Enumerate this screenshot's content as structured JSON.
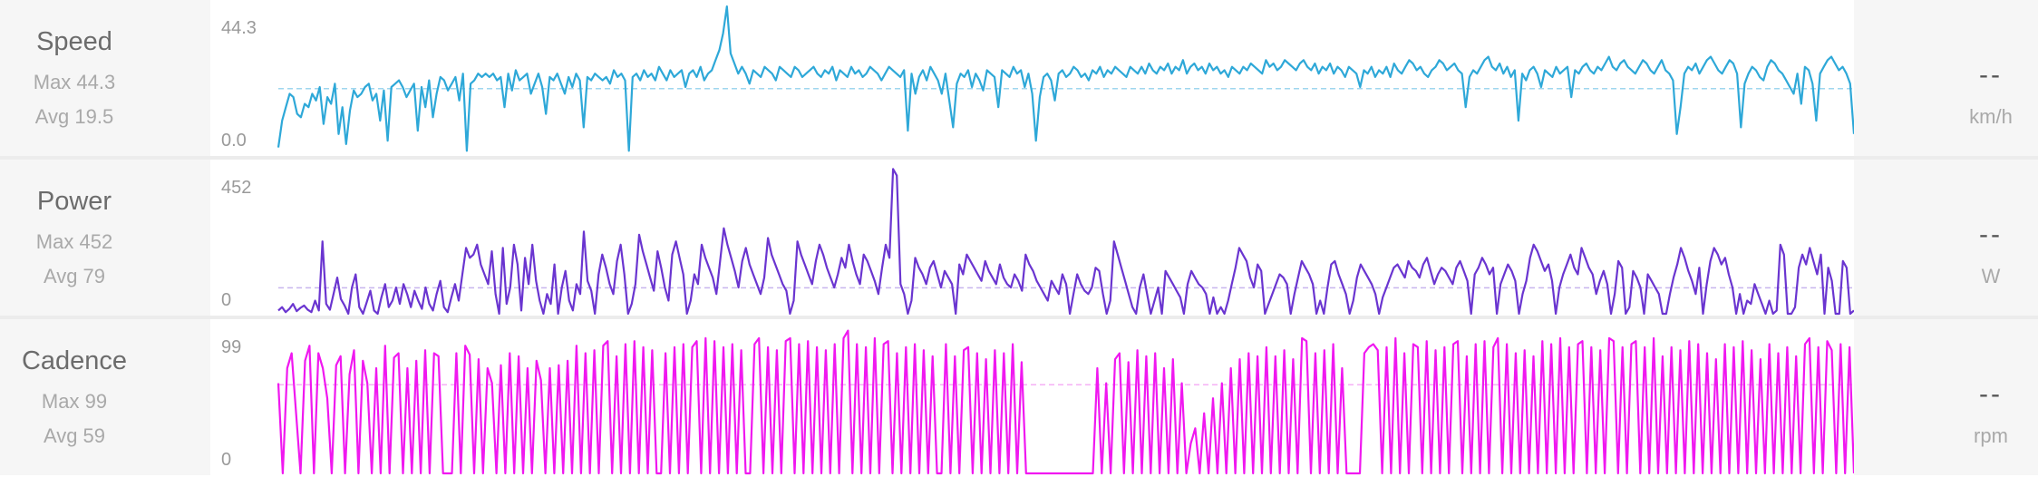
{
  "chart_data": [
    {
      "type": "line",
      "title": "Speed",
      "max_label": "Max 44.3",
      "avg_label": "Avg 19.5",
      "current": "--",
      "unit": "km/h",
      "ytick_top": "44.3",
      "ytick_bottom": "0.0",
      "ylim": [
        0,
        44.3
      ],
      "avg": 19.5,
      "color": "#2ea8d8",
      "avg_color": "#9fd6ee",
      "values": [
        2,
        10,
        14,
        18,
        17,
        12,
        11,
        15,
        14,
        18,
        16,
        20,
        9,
        17,
        15,
        21,
        6,
        14,
        3,
        13,
        19,
        17,
        18,
        20,
        21,
        16,
        18,
        10,
        19,
        4,
        20,
        21,
        22,
        20,
        17,
        19,
        21,
        7,
        20,
        14,
        22,
        11,
        18,
        23,
        22,
        19,
        21,
        23,
        16,
        24,
        1,
        21,
        22,
        24,
        23,
        24,
        23,
        24,
        22,
        23,
        14,
        24,
        19,
        25,
        22,
        23,
        24,
        18,
        21,
        24,
        20,
        12,
        23,
        22,
        24,
        21,
        18,
        23,
        20,
        24,
        22,
        8,
        23,
        22,
        24,
        23,
        22,
        23,
        21,
        25,
        23,
        24,
        22,
        1,
        23,
        24,
        22,
        25,
        23,
        24,
        22,
        26,
        24,
        22,
        25,
        23,
        24,
        25,
        20,
        24,
        25,
        23,
        26,
        22,
        24,
        25,
        28,
        31,
        36,
        44,
        30,
        27,
        24,
        26,
        24,
        21,
        25,
        24,
        23,
        26,
        25,
        24,
        22,
        26,
        25,
        24,
        23,
        26,
        25,
        23,
        24,
        25,
        26,
        24,
        23,
        25,
        24,
        26,
        22,
        25,
        24,
        23,
        26,
        24,
        25,
        23,
        24,
        26,
        25,
        24,
        22,
        24,
        26,
        25,
        24,
        23,
        25,
        7,
        24,
        18,
        23,
        25,
        22,
        26,
        24,
        22,
        18,
        24,
        16,
        8,
        21,
        24,
        23,
        25,
        20,
        24,
        22,
        19,
        25,
        24,
        23,
        14,
        25,
        24,
        23,
        26,
        24,
        25,
        20,
        24,
        18,
        4,
        17,
        23,
        24,
        22,
        16,
        24,
        25,
        23,
        24,
        26,
        25,
        23,
        24,
        22,
        25,
        24,
        26,
        23,
        25,
        24,
        26,
        25,
        24,
        23,
        26,
        25,
        24,
        26,
        24,
        27,
        25,
        24,
        26,
        25,
        27,
        24,
        26,
        25,
        28,
        24,
        26,
        27,
        25,
        26,
        24,
        27,
        25,
        26,
        24,
        25,
        23,
        26,
        25,
        24,
        26,
        25,
        27,
        26,
        25,
        24,
        28,
        26,
        27,
        25,
        26,
        28,
        27,
        26,
        25,
        27,
        28,
        26,
        25,
        27,
        24,
        26,
        25,
        27,
        24,
        26,
        25,
        23,
        26,
        25,
        24,
        20,
        25,
        24,
        26,
        23,
        25,
        24,
        26,
        23,
        27,
        25,
        24,
        26,
        28,
        27,
        25,
        26,
        24,
        23,
        25,
        26,
        28,
        27,
        25,
        26,
        27,
        25,
        24,
        14,
        23,
        25,
        24,
        26,
        28,
        29,
        26,
        25,
        27,
        24,
        26,
        23,
        25,
        10,
        24,
        22,
        25,
        26,
        24,
        20,
        25,
        24,
        23,
        26,
        24,
        25,
        26,
        17,
        25,
        24,
        26,
        27,
        25,
        24,
        26,
        25,
        27,
        29,
        26,
        25,
        27,
        28,
        26,
        25,
        24,
        26,
        28,
        27,
        25,
        24,
        26,
        28,
        25,
        24,
        22,
        6,
        14,
        24,
        26,
        25,
        27,
        24,
        26,
        28,
        29,
        27,
        25,
        24,
        26,
        28,
        27,
        24,
        8,
        21,
        24,
        26,
        25,
        23,
        22,
        26,
        28,
        27,
        25,
        24,
        22,
        20,
        18,
        24,
        15,
        26,
        25,
        21,
        10,
        24,
        26,
        28,
        29,
        27,
        25,
        26,
        24,
        21,
        6
      ]
    },
    {
      "type": "line",
      "title": "Power",
      "max_label": "Max 452",
      "avg_label": "Avg 79",
      "current": "--",
      "unit": "W",
      "ytick_top": "452",
      "ytick_bottom": "0",
      "ylim": [
        0,
        452
      ],
      "avg": 79,
      "color": "#6a35d0",
      "avg_color": "#c7b5ee",
      "values": [
        10,
        20,
        5,
        15,
        30,
        8,
        18,
        25,
        12,
        5,
        40,
        10,
        220,
        30,
        12,
        60,
        110,
        45,
        25,
        0,
        80,
        120,
        20,
        0,
        35,
        70,
        10,
        0,
        50,
        90,
        20,
        40,
        80,
        30,
        90,
        60,
        20,
        70,
        40,
        15,
        80,
        30,
        10,
        60,
        100,
        20,
        5,
        50,
        90,
        40,
        120,
        200,
        170,
        180,
        210,
        150,
        120,
        90,
        190,
        60,
        0,
        200,
        30,
        80,
        210,
        150,
        10,
        170,
        90,
        210,
        100,
        40,
        0,
        60,
        30,
        150,
        0,
        80,
        130,
        40,
        10,
        90,
        60,
        250,
        100,
        70,
        0,
        120,
        180,
        140,
        90,
        60,
        160,
        210,
        120,
        0,
        30,
        90,
        240,
        190,
        150,
        110,
        70,
        190,
        140,
        80,
        40,
        180,
        220,
        170,
        120,
        0,
        40,
        120,
        90,
        210,
        170,
        140,
        110,
        60,
        160,
        260,
        210,
        170,
        130,
        80,
        160,
        200,
        150,
        120,
        90,
        60,
        110,
        230,
        180,
        150,
        120,
        90,
        70,
        0,
        40,
        220,
        180,
        150,
        120,
        90,
        160,
        210,
        180,
        140,
        110,
        80,
        120,
        170,
        140,
        210,
        160,
        120,
        90,
        180,
        160,
        130,
        100,
        60,
        140,
        210,
        170,
        440,
        420,
        90,
        60,
        0,
        40,
        170,
        140,
        120,
        90,
        140,
        160,
        120,
        80,
        130,
        110,
        90,
        0,
        150,
        120,
        180,
        160,
        140,
        120,
        100,
        160,
        130,
        110,
        90,
        150,
        110,
        90,
        80,
        120,
        100,
        70,
        180,
        150,
        130,
        100,
        80,
        60,
        40,
        100,
        80,
        60,
        120,
        90,
        0,
        60,
        120,
        90,
        70,
        60,
        80,
        140,
        130,
        60,
        0,
        40,
        220,
        180,
        140,
        100,
        60,
        20,
        0,
        80,
        120,
        60,
        0,
        40,
        80,
        0,
        130,
        110,
        90,
        70,
        50,
        0,
        90,
        130,
        110,
        90,
        80,
        60,
        0,
        50,
        0,
        20,
        0,
        40,
        90,
        140,
        200,
        180,
        160,
        110,
        80,
        150,
        130,
        0,
        30,
        60,
        90,
        120,
        110,
        90,
        0,
        60,
        110,
        160,
        140,
        120,
        90,
        0,
        40,
        0,
        80,
        150,
        160,
        120,
        90,
        60,
        0,
        40,
        110,
        150,
        130,
        110,
        90,
        60,
        0,
        50,
        80,
        110,
        140,
        150,
        130,
        110,
        160,
        140,
        130,
        110,
        150,
        170,
        130,
        90,
        120,
        140,
        130,
        110,
        90,
        140,
        160,
        130,
        100,
        0,
        120,
        140,
        170,
        150,
        120,
        140,
        0,
        90,
        120,
        150,
        130,
        100,
        0,
        60,
        100,
        170,
        210,
        190,
        160,
        130,
        150,
        100,
        0,
        80,
        120,
        150,
        180,
        140,
        120,
        200,
        170,
        140,
        120,
        60,
        100,
        130,
        90,
        0,
        60,
        160,
        140,
        0,
        20,
        130,
        110,
        80,
        0,
        120,
        100,
        80,
        60,
        0,
        0,
        60,
        110,
        150,
        200,
        170,
        130,
        100,
        60,
        140,
        0,
        90,
        160,
        200,
        180,
        150,
        170,
        120,
        80,
        0,
        60,
        0,
        40,
        30,
        90,
        60,
        30,
        0,
        40,
        0,
        10,
        210,
        180,
        0,
        0,
        20,
        140,
        180,
        150,
        200,
        160,
        120,
        180,
        0,
        140,
        100,
        0,
        0,
        160,
        140,
        0,
        10
      ]
    },
    {
      "type": "line",
      "title": "Cadence",
      "max_label": "Max 99",
      "avg_label": "Avg 59",
      "current": "--",
      "unit": "rpm",
      "ytick_top": "99",
      "ytick_bottom": "0",
      "ylim": [
        0,
        99
      ],
      "avg": 59,
      "color": "#f018f0",
      "avg_color": "#f5b0f5",
      "values": [
        60,
        0,
        70,
        80,
        40,
        0,
        75,
        85,
        0,
        80,
        70,
        50,
        0,
        72,
        78,
        0,
        66,
        82,
        0,
        75,
        60,
        0,
        70,
        0,
        85,
        0,
        77,
        80,
        0,
        70,
        0,
        75,
        0,
        82,
        0,
        80,
        78,
        0,
        0,
        0,
        80,
        0,
        85,
        79,
        0,
        76,
        0,
        70,
        60,
        0,
        72,
        0,
        80,
        0,
        78,
        0,
        70,
        0,
        75,
        62,
        0,
        70,
        0,
        72,
        0,
        75,
        0,
        85,
        0,
        80,
        0,
        82,
        0,
        85,
        88,
        0,
        78,
        0,
        86,
        0,
        88,
        0,
        84,
        0,
        82,
        0,
        0,
        80,
        0,
        84,
        0,
        86,
        0,
        84,
        88,
        0,
        90,
        0,
        88,
        0,
        84,
        0,
        86,
        0,
        82,
        0,
        0,
        86,
        90,
        0,
        84,
        0,
        82,
        0,
        88,
        90,
        0,
        86,
        0,
        88,
        0,
        84,
        0,
        82,
        0,
        86,
        0,
        90,
        95,
        0,
        86,
        0,
        84,
        0,
        90,
        0,
        86,
        88,
        0,
        80,
        0,
        84,
        0,
        86,
        0,
        82,
        0,
        78,
        0,
        0,
        86,
        0,
        78,
        0,
        82,
        84,
        0,
        80,
        0,
        76,
        0,
        82,
        0,
        80,
        0,
        86,
        0,
        74,
        0,
        0,
        0,
        0,
        0,
        0,
        0,
        0,
        0,
        0,
        0,
        0,
        0,
        0,
        0,
        0,
        70,
        0,
        60,
        0,
        76,
        80,
        0,
        74,
        0,
        82,
        0,
        78,
        0,
        80,
        0,
        70,
        0,
        76,
        0,
        60,
        0,
        20,
        30,
        0,
        40,
        0,
        50,
        0,
        60,
        0,
        70,
        0,
        76,
        0,
        80,
        0,
        78,
        0,
        84,
        0,
        78,
        0,
        82,
        0,
        76,
        0,
        90,
        88,
        0,
        80,
        0,
        82,
        0,
        86,
        0,
        70,
        0,
        0,
        0,
        0,
        80,
        84,
        86,
        82,
        0,
        84,
        0,
        90,
        0,
        80,
        0,
        86,
        84,
        0,
        88,
        0,
        82,
        0,
        84,
        0,
        86,
        88,
        0,
        78,
        0,
        86,
        0,
        88,
        0,
        84,
        90,
        0,
        86,
        0,
        80,
        0,
        82,
        0,
        78,
        0,
        88,
        0,
        86,
        0,
        90,
        0,
        84,
        0,
        86,
        88,
        0,
        84,
        0,
        82,
        0,
        90,
        88,
        0,
        84,
        0,
        86,
        88,
        0,
        84,
        0,
        90,
        0,
        78,
        0,
        84,
        0,
        82,
        0,
        88,
        0,
        86,
        0,
        80,
        0,
        76,
        0,
        86,
        0,
        84,
        0,
        88,
        0,
        82,
        0,
        76,
        0,
        86,
        0,
        80,
        0,
        84,
        0,
        78,
        0,
        86,
        90,
        0,
        84,
        0,
        88,
        82,
        0,
        86,
        0,
        84,
        0
      ]
    }
  ]
}
